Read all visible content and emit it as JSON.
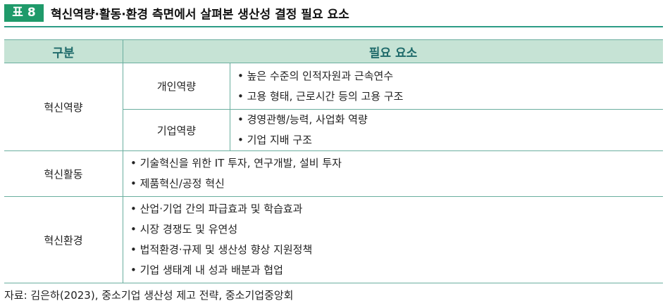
{
  "title": {
    "badge": "표 8",
    "text": "혁신역량·활동·환경 측면에서 살펴본 생산성 결정 필요 요소"
  },
  "table": {
    "headers": [
      "구분",
      "필요 요소"
    ],
    "groups": [
      {
        "label": "혁신역량",
        "subs": [
          {
            "label": "개인역량",
            "items": [
              "높은 수준의 인적자원과 근속연수",
              "고용 형태, 근로시간 등의 고용 구조"
            ]
          },
          {
            "label": "기업역량",
            "items": [
              "경영관행/능력, 사업화 역량",
              "기업 지배 구조"
            ]
          }
        ]
      },
      {
        "label": "혁신활동",
        "items": [
          "기술혁신을 위한 IT 투자, 연구개발, 설비 투자",
          "제품혁신/공정 혁신"
        ]
      },
      {
        "label": "혁신환경",
        "items": [
          "산업·기업 간의 파급효과 및 학습효과",
          "시장 경쟁도 및 유연성",
          "법적환경·규제 및 생산성 향상 지원정책",
          "기업 생태계 내 성과 배분과 협업"
        ]
      }
    ]
  },
  "source": "자료: 김은하(2023), 중소기업 생산성 제고 전략, 중소기업중앙회"
}
